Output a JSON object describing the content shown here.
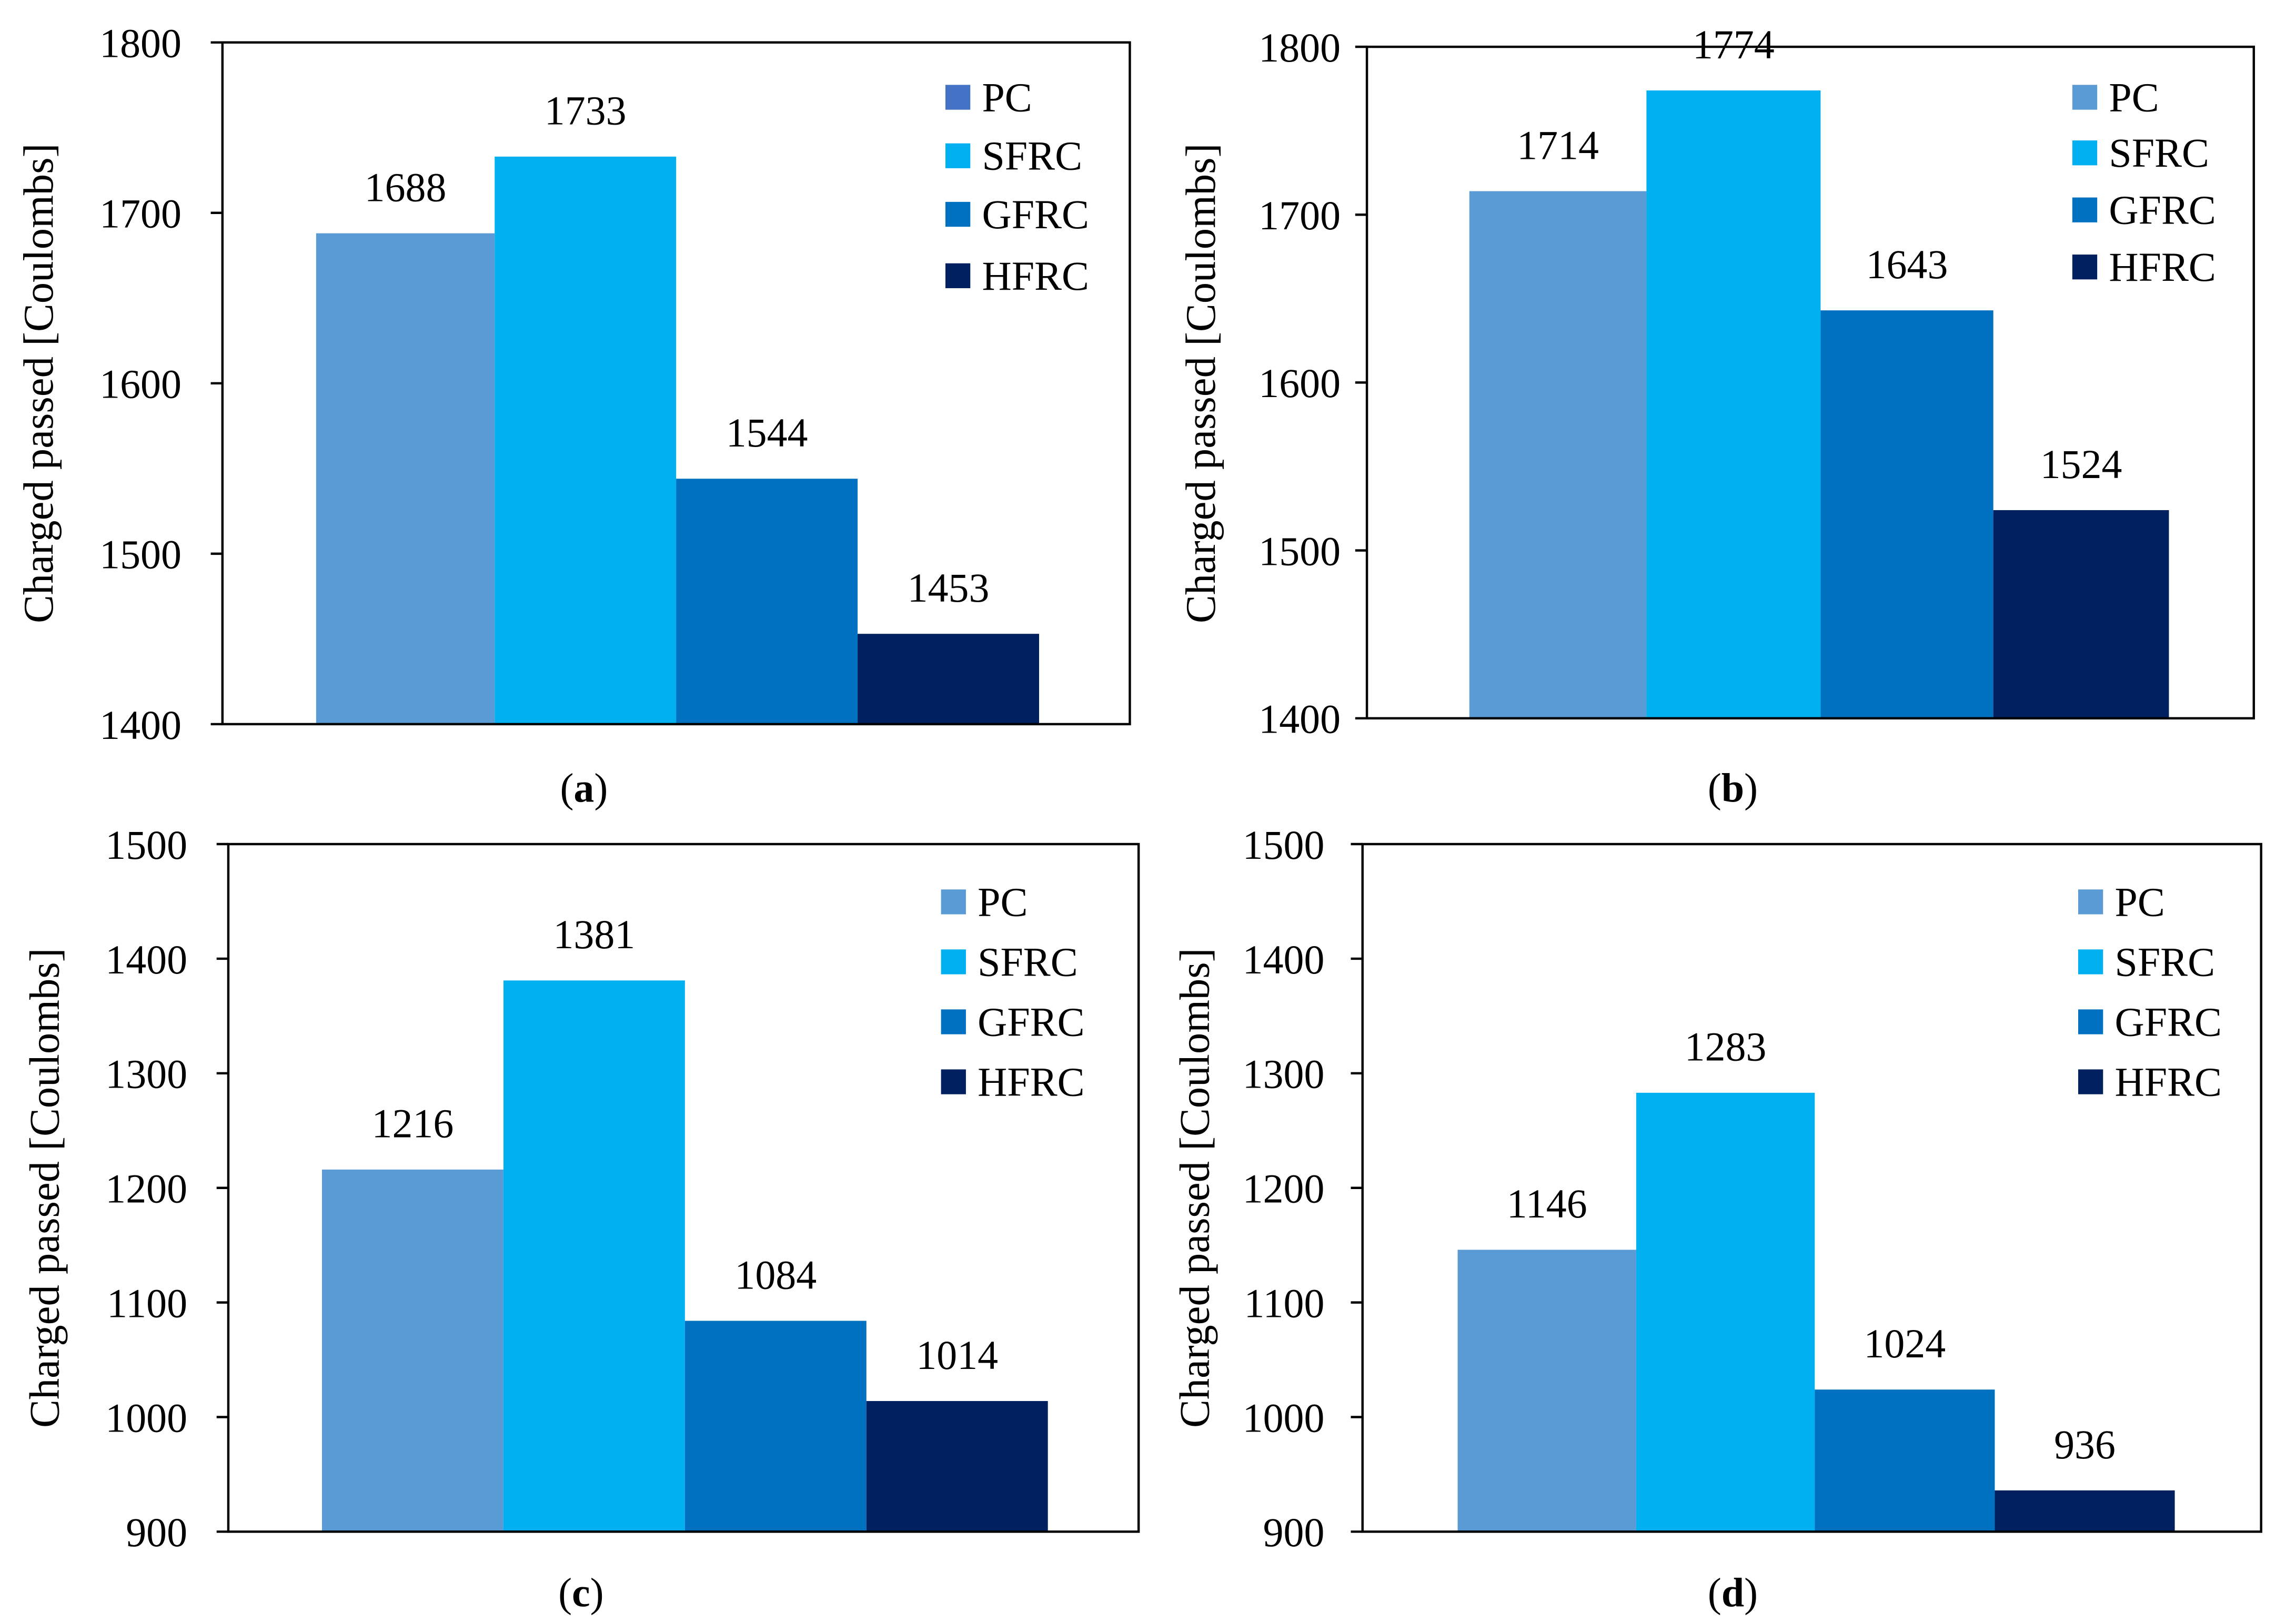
{
  "colors": {
    "PC": "#5b9bd5",
    "SFRC": "#00b0f0",
    "GFRC": "#0070c0",
    "HFRC": "#002060",
    "legend_pc_a": "#4472c4",
    "axis": "#000000"
  },
  "chart_data": [
    {
      "type": "bar",
      "panel": "a",
      "caption": "(a)",
      "ylabel": "Charged passed [Coulombs]",
      "ylim": [
        1400,
        1800
      ],
      "yticks": [
        "1400",
        "1500",
        "1600",
        "1700",
        "1800"
      ],
      "grid": false,
      "legend_position": "top-right",
      "series": [
        {
          "name": "PC",
          "value": 1688,
          "label": "1688"
        },
        {
          "name": "SFRC",
          "value": 1733,
          "label": "1733"
        },
        {
          "name": "GFRC",
          "value": 1544,
          "label": "1544"
        },
        {
          "name": "HFRC",
          "value": 1453,
          "label": "1453"
        }
      ]
    },
    {
      "type": "bar",
      "panel": "b",
      "caption": "(b)",
      "ylabel": "Charged passed [Coulombs]",
      "ylim": [
        1400,
        1800
      ],
      "yticks": [
        "1400",
        "1500",
        "1600",
        "1700",
        "1800"
      ],
      "grid": false,
      "legend_position": "top-right",
      "series": [
        {
          "name": "PC",
          "value": 1714,
          "label": "1714"
        },
        {
          "name": "SFRC",
          "value": 1774,
          "label": "1774"
        },
        {
          "name": "GFRC",
          "value": 1643,
          "label": "1643"
        },
        {
          "name": "HFRC",
          "value": 1524,
          "label": "1524"
        }
      ]
    },
    {
      "type": "bar",
      "panel": "c",
      "caption": "(c)",
      "ylabel": "Charged passed [Coulombs]",
      "ylim": [
        900,
        1500
      ],
      "yticks": [
        "900",
        "1000",
        "1100",
        "1200",
        "1300",
        "1400",
        "1500"
      ],
      "grid": false,
      "legend_position": "top-right",
      "series": [
        {
          "name": "PC",
          "value": 1216,
          "label": "1216"
        },
        {
          "name": "SFRC",
          "value": 1381,
          "label": "1381"
        },
        {
          "name": "GFRC",
          "value": 1084,
          "label": "1084"
        },
        {
          "name": "HFRC",
          "value": 1014,
          "label": "1014"
        }
      ]
    },
    {
      "type": "bar",
      "panel": "d",
      "caption": "(d)",
      "ylabel": "Charged passed [Coulombs]",
      "ylim": [
        900,
        1500
      ],
      "yticks": [
        "900",
        "1000",
        "1100",
        "1200",
        "1300",
        "1400",
        "1500"
      ],
      "grid": false,
      "legend_position": "top-right",
      "series": [
        {
          "name": "PC",
          "value": 1146,
          "label": "1146"
        },
        {
          "name": "SFRC",
          "value": 1283,
          "label": "1283"
        },
        {
          "name": "GFRC",
          "value": 1024,
          "label": "1024"
        },
        {
          "name": "HFRC",
          "value": 936,
          "label": "936"
        }
      ]
    }
  ]
}
